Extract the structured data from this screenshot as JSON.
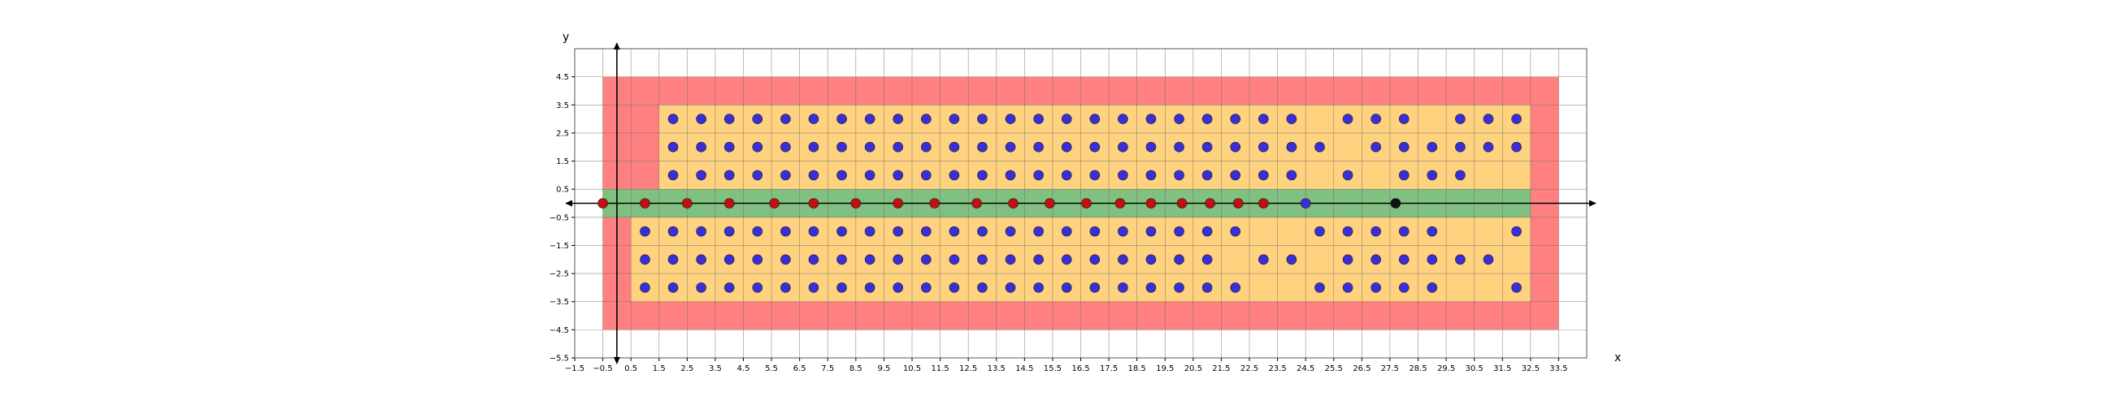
{
  "chart_data": {
    "type": "scatter",
    "xlabel": "x",
    "ylabel": "y",
    "xlim": [
      -1.5,
      34.5
    ],
    "ylim": [
      -5.5,
      5.5
    ],
    "x_ticks": [
      -1.5,
      -0.5,
      0.5,
      1.5,
      2.5,
      3.5,
      4.5,
      5.5,
      6.5,
      7.5,
      8.5,
      9.5,
      10.5,
      11.5,
      12.5,
      13.5,
      14.5,
      15.5,
      16.5,
      17.5,
      18.5,
      19.5,
      20.5,
      21.5,
      22.5,
      23.5,
      24.5,
      25.5,
      26.5,
      27.5,
      28.5,
      29.5,
      30.5,
      31.5,
      32.5,
      33.5
    ],
    "x_tick_labels": [
      "−1.5",
      "−0.5",
      "0.5",
      "1.5",
      "2.5",
      "3.5",
      "4.5",
      "5.5",
      "6.5",
      "7.5",
      "8.5",
      "9.5",
      "10.5",
      "11.5",
      "12.5",
      "13.5",
      "14.5",
      "15.5",
      "16.5",
      "17.5",
      "18.5",
      "19.5",
      "20.5",
      "21.5",
      "22.5",
      "23.5",
      "24.5",
      "25.5",
      "26.5",
      "27.5",
      "28.5",
      "29.5",
      "30.5",
      "31.5",
      "32.5",
      "33.5"
    ],
    "y_ticks": [
      -5.5,
      -4.5,
      -3.5,
      -2.5,
      -1.5,
      -0.5,
      0.5,
      1.5,
      2.5,
      3.5,
      4.5
    ],
    "y_tick_labels": [
      "−5.5",
      "−4.5",
      "−3.5",
      "−2.5",
      "−1.5",
      "−0.5",
      "0.5",
      "1.5",
      "2.5",
      "3.5",
      "4.5"
    ],
    "grid": true,
    "regions": [
      {
        "color": "#ff8080",
        "x": [
          -0.5,
          33.5
        ],
        "y": [
          -4.5,
          4.5
        ]
      },
      {
        "color": "#ffd27f",
        "x": [
          1.5,
          32.5
        ],
        "y": [
          0.5,
          3.5
        ]
      },
      {
        "color": "#ffd27f",
        "x": [
          0.5,
          32.5
        ],
        "y": [
          -3.5,
          -0.5
        ]
      },
      {
        "color": "#80c080",
        "x": [
          -0.5,
          32.5
        ],
        "y": [
          -0.5,
          0.5
        ]
      }
    ],
    "series": [
      {
        "color": "#3a2fd6",
        "points": [
          [
            2,
            3
          ],
          [
            3,
            3
          ],
          [
            4,
            3
          ],
          [
            5,
            3
          ],
          [
            6,
            3
          ],
          [
            7,
            3
          ],
          [
            8,
            3
          ],
          [
            9,
            3
          ],
          [
            10,
            3
          ],
          [
            11,
            3
          ],
          [
            12,
            3
          ],
          [
            13,
            3
          ],
          [
            14,
            3
          ],
          [
            15,
            3
          ],
          [
            16,
            3
          ],
          [
            17,
            3
          ],
          [
            18,
            3
          ],
          [
            19,
            3
          ],
          [
            20,
            3
          ],
          [
            21,
            3
          ],
          [
            22,
            3
          ],
          [
            23,
            3
          ],
          [
            24,
            3
          ],
          [
            26,
            3
          ],
          [
            27,
            3
          ],
          [
            28,
            3
          ],
          [
            30,
            3
          ],
          [
            31,
            3
          ],
          [
            32,
            3
          ],
          [
            2,
            2
          ],
          [
            3,
            2
          ],
          [
            4,
            2
          ],
          [
            5,
            2
          ],
          [
            6,
            2
          ],
          [
            7,
            2
          ],
          [
            8,
            2
          ],
          [
            9,
            2
          ],
          [
            10,
            2
          ],
          [
            11,
            2
          ],
          [
            12,
            2
          ],
          [
            13,
            2
          ],
          [
            14,
            2
          ],
          [
            15,
            2
          ],
          [
            16,
            2
          ],
          [
            17,
            2
          ],
          [
            18,
            2
          ],
          [
            19,
            2
          ],
          [
            20,
            2
          ],
          [
            21,
            2
          ],
          [
            22,
            2
          ],
          [
            23,
            2
          ],
          [
            24,
            2
          ],
          [
            25,
            2
          ],
          [
            27,
            2
          ],
          [
            28,
            2
          ],
          [
            29,
            2
          ],
          [
            30,
            2
          ],
          [
            31,
            2
          ],
          [
            32,
            2
          ],
          [
            2,
            1
          ],
          [
            3,
            1
          ],
          [
            4,
            1
          ],
          [
            5,
            1
          ],
          [
            6,
            1
          ],
          [
            7,
            1
          ],
          [
            8,
            1
          ],
          [
            9,
            1
          ],
          [
            10,
            1
          ],
          [
            11,
            1
          ],
          [
            12,
            1
          ],
          [
            13,
            1
          ],
          [
            14,
            1
          ],
          [
            15,
            1
          ],
          [
            16,
            1
          ],
          [
            17,
            1
          ],
          [
            18,
            1
          ],
          [
            19,
            1
          ],
          [
            20,
            1
          ],
          [
            21,
            1
          ],
          [
            22,
            1
          ],
          [
            23,
            1
          ],
          [
            24,
            1
          ],
          [
            26,
            1
          ],
          [
            28,
            1
          ],
          [
            29,
            1
          ],
          [
            30,
            1
          ],
          [
            1,
            -1
          ],
          [
            2,
            -1
          ],
          [
            3,
            -1
          ],
          [
            4,
            -1
          ],
          [
            5,
            -1
          ],
          [
            6,
            -1
          ],
          [
            7,
            -1
          ],
          [
            8,
            -1
          ],
          [
            9,
            -1
          ],
          [
            10,
            -1
          ],
          [
            11,
            -1
          ],
          [
            12,
            -1
          ],
          [
            13,
            -1
          ],
          [
            14,
            -1
          ],
          [
            15,
            -1
          ],
          [
            16,
            -1
          ],
          [
            17,
            -1
          ],
          [
            18,
            -1
          ],
          [
            19,
            -1
          ],
          [
            20,
            -1
          ],
          [
            21,
            -1
          ],
          [
            22,
            -1
          ],
          [
            25,
            -1
          ],
          [
            26,
            -1
          ],
          [
            27,
            -1
          ],
          [
            28,
            -1
          ],
          [
            29,
            -1
          ],
          [
            32,
            -1
          ],
          [
            1,
            -2
          ],
          [
            2,
            -2
          ],
          [
            3,
            -2
          ],
          [
            4,
            -2
          ],
          [
            5,
            -2
          ],
          [
            6,
            -2
          ],
          [
            7,
            -2
          ],
          [
            8,
            -2
          ],
          [
            9,
            -2
          ],
          [
            10,
            -2
          ],
          [
            11,
            -2
          ],
          [
            12,
            -2
          ],
          [
            13,
            -2
          ],
          [
            14,
            -2
          ],
          [
            15,
            -2
          ],
          [
            16,
            -2
          ],
          [
            17,
            -2
          ],
          [
            18,
            -2
          ],
          [
            19,
            -2
          ],
          [
            20,
            -2
          ],
          [
            21,
            -2
          ],
          [
            23,
            -2
          ],
          [
            24,
            -2
          ],
          [
            26,
            -2
          ],
          [
            27,
            -2
          ],
          [
            28,
            -2
          ],
          [
            29,
            -2
          ],
          [
            30,
            -2
          ],
          [
            31,
            -2
          ],
          [
            1,
            -3
          ],
          [
            2,
            -3
          ],
          [
            3,
            -3
          ],
          [
            4,
            -3
          ],
          [
            5,
            -3
          ],
          [
            6,
            -3
          ],
          [
            7,
            -3
          ],
          [
            8,
            -3
          ],
          [
            9,
            -3
          ],
          [
            10,
            -3
          ],
          [
            11,
            -3
          ],
          [
            12,
            -3
          ],
          [
            13,
            -3
          ],
          [
            14,
            -3
          ],
          [
            15,
            -3
          ],
          [
            16,
            -3
          ],
          [
            17,
            -3
          ],
          [
            18,
            -3
          ],
          [
            19,
            -3
          ],
          [
            20,
            -3
          ],
          [
            21,
            -3
          ],
          [
            22,
            -3
          ],
          [
            25,
            -3
          ],
          [
            26,
            -3
          ],
          [
            27,
            -3
          ],
          [
            28,
            -3
          ],
          [
            29,
            -3
          ],
          [
            32,
            -3
          ]
        ]
      },
      {
        "color": "#c01010",
        "points": [
          [
            -0.5,
            0
          ],
          [
            1,
            0
          ],
          [
            2.5,
            0
          ],
          [
            4,
            0
          ],
          [
            5.6,
            0
          ],
          [
            7,
            0
          ],
          [
            8.5,
            0
          ],
          [
            10,
            0
          ],
          [
            11.3,
            0
          ],
          [
            12.8,
            0
          ],
          [
            14.1,
            0
          ],
          [
            15.4,
            0
          ],
          [
            16.7,
            0
          ],
          [
            17.9,
            0
          ],
          [
            19,
            0
          ],
          [
            20.1,
            0
          ],
          [
            21.1,
            0
          ],
          [
            22.1,
            0
          ],
          [
            23,
            0
          ]
        ]
      },
      {
        "color": "#3a2fd6",
        "points": [
          [
            24.5,
            0
          ]
        ]
      },
      {
        "color": "#111111",
        "points": [
          [
            27.7,
            0
          ]
        ]
      }
    ]
  }
}
